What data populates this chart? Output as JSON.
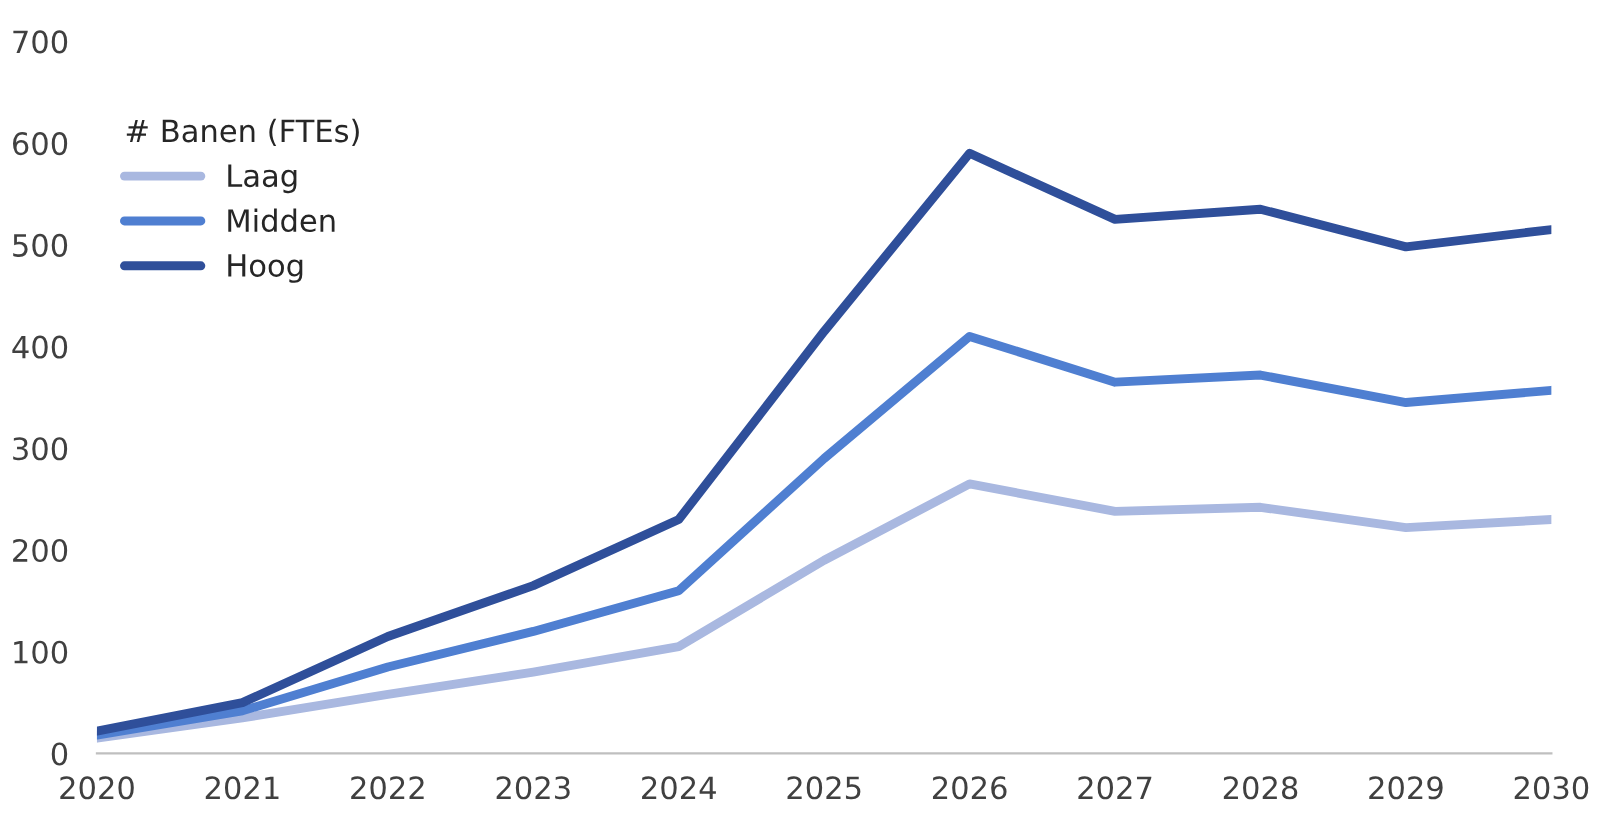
{
  "chart_data": {
    "type": "line",
    "legend_title": "# Banen (FTEs)",
    "x": [
      2020,
      2021,
      2022,
      2023,
      2024,
      2025,
      2026,
      2027,
      2028,
      2029,
      2030
    ],
    "series": [
      {
        "name": "Laag",
        "color": "#a9b8e0",
        "values": [
          15,
          35,
          58,
          80,
          105,
          190,
          265,
          238,
          242,
          222,
          230
        ]
      },
      {
        "name": "Midden",
        "color": "#4f7fd1",
        "values": [
          18,
          42,
          85,
          120,
          160,
          290,
          410,
          365,
          372,
          345,
          357
        ]
      },
      {
        "name": "Hoog",
        "color": "#2f4f9a",
        "values": [
          22,
          50,
          115,
          165,
          230,
          415,
          590,
          525,
          535,
          498,
          515
        ]
      }
    ],
    "xlim": [
      2020,
      2030
    ],
    "xticks": [
      2020,
      2021,
      2022,
      2023,
      2024,
      2025,
      2026,
      2027,
      2028,
      2029,
      2030
    ],
    "ylim": [
      0,
      700
    ],
    "yticks": [
      0,
      100,
      200,
      300,
      400,
      500,
      600,
      700
    ],
    "grid": false,
    "legend": "top left",
    "marker": "none",
    "line_style": "solid"
  }
}
